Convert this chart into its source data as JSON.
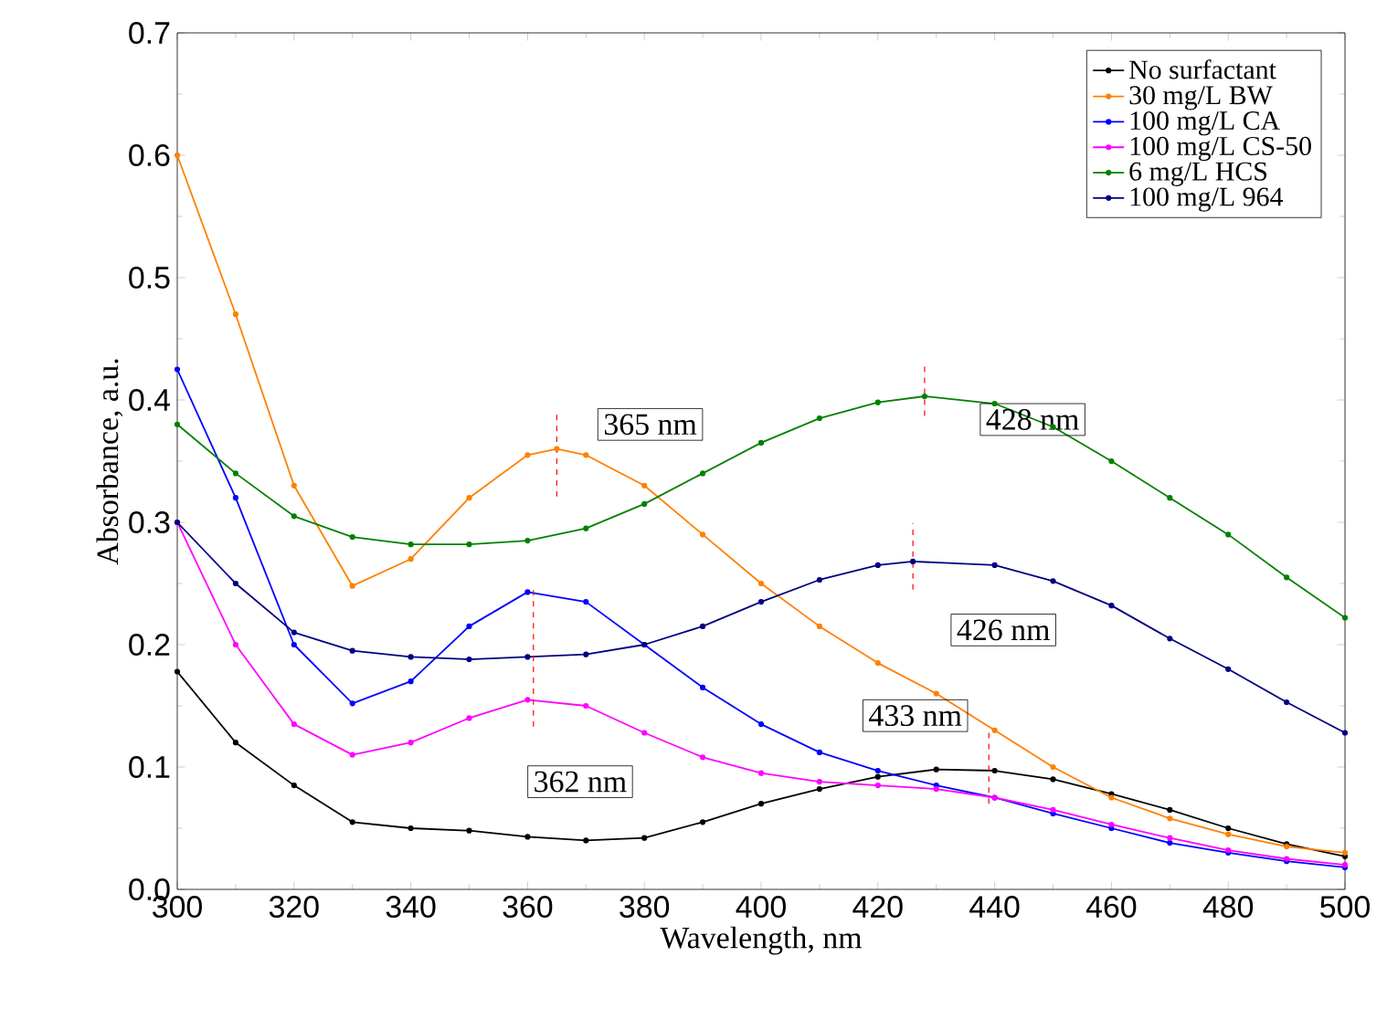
{
  "chart_data": {
    "type": "line",
    "xlabel": "Wavelength, nm",
    "ylabel": "Absorbance, a.u.",
    "xlim": [
      300,
      500
    ],
    "ylim": [
      0,
      0.7
    ],
    "xticks": [
      300,
      320,
      340,
      360,
      380,
      400,
      420,
      440,
      460,
      480,
      500
    ],
    "yticks": [
      {
        "value": 0,
        "label": "0.0"
      },
      0.1,
      0.2,
      0.3,
      0.4,
      0.5,
      0.6,
      0.7
    ],
    "grid": false,
    "legend": "top right",
    "marker": "circle",
    "line_style": "solid",
    "series": [
      {
        "name": "No surfactant",
        "color": "#000000",
        "x": [
          300,
          310,
          320,
          330,
          340,
          350,
          360,
          370,
          380,
          390,
          400,
          410,
          420,
          430,
          440,
          450,
          460,
          470,
          480,
          490,
          500
        ],
        "values": [
          0.178,
          0.12,
          0.085,
          0.055,
          0.05,
          0.048,
          0.043,
          0.04,
          0.042,
          0.055,
          0.07,
          0.082,
          0.092,
          0.098,
          0.097,
          0.09,
          0.078,
          0.065,
          0.05,
          0.037,
          0.027
        ]
      },
      {
        "name": "30 mg/L BW",
        "color": "#ff8000",
        "x": [
          300,
          310,
          320,
          330,
          340,
          350,
          360,
          365,
          370,
          380,
          390,
          400,
          410,
          420,
          430,
          440,
          450,
          460,
          470,
          480,
          490,
          500
        ],
        "values": [
          0.6,
          0.47,
          0.33,
          0.248,
          0.27,
          0.32,
          0.355,
          0.36,
          0.355,
          0.33,
          0.29,
          0.25,
          0.215,
          0.185,
          0.16,
          0.13,
          0.1,
          0.075,
          0.058,
          0.045,
          0.035,
          0.03
        ]
      },
      {
        "name": "100 mg/L CA",
        "color": "#0000ff",
        "x": [
          300,
          310,
          320,
          330,
          340,
          350,
          360,
          370,
          380,
          390,
          400,
          410,
          420,
          430,
          440,
          450,
          460,
          470,
          480,
          490,
          500
        ],
        "values": [
          0.425,
          0.32,
          0.2,
          0.152,
          0.17,
          0.215,
          0.243,
          0.235,
          0.2,
          0.165,
          0.135,
          0.112,
          0.097,
          0.085,
          0.075,
          0.062,
          0.05,
          0.038,
          0.03,
          0.023,
          0.018
        ]
      },
      {
        "name": "100 mg/L CS-50",
        "color": "#ff00ff",
        "x": [
          300,
          310,
          320,
          330,
          340,
          350,
          360,
          370,
          380,
          390,
          400,
          410,
          420,
          430,
          440,
          450,
          460,
          470,
          480,
          490,
          500
        ],
        "values": [
          0.3,
          0.2,
          0.135,
          0.11,
          0.12,
          0.14,
          0.155,
          0.15,
          0.128,
          0.108,
          0.095,
          0.088,
          0.085,
          0.082,
          0.075,
          0.065,
          0.053,
          0.042,
          0.032,
          0.025,
          0.02
        ]
      },
      {
        "name": "6 mg/L HCS",
        "color": "#008000",
        "x": [
          300,
          310,
          320,
          330,
          340,
          350,
          360,
          370,
          380,
          390,
          400,
          410,
          420,
          428,
          440,
          450,
          460,
          470,
          480,
          490,
          500
        ],
        "values": [
          0.38,
          0.34,
          0.305,
          0.288,
          0.282,
          0.282,
          0.285,
          0.295,
          0.315,
          0.34,
          0.365,
          0.385,
          0.398,
          0.403,
          0.397,
          0.378,
          0.35,
          0.32,
          0.29,
          0.255,
          0.222
        ]
      },
      {
        "name": "100 mg/L 964",
        "color": "#000080",
        "x": [
          300,
          310,
          320,
          330,
          340,
          350,
          360,
          370,
          380,
          390,
          400,
          410,
          420,
          426,
          440,
          450,
          460,
          470,
          480,
          490,
          500
        ],
        "values": [
          0.3,
          0.25,
          0.21,
          0.195,
          0.19,
          0.188,
          0.19,
          0.192,
          0.2,
          0.215,
          0.235,
          0.253,
          0.265,
          0.268,
          0.265,
          0.252,
          0.232,
          0.205,
          0.18,
          0.153,
          0.128
        ]
      },
      {
        "type": "line",
        "color": "#ff0000",
        "line_style": "dashed",
        "marker": "none",
        "x": [
          365,
          365
        ],
        "values": [
          0.321,
          0.388
        ]
      },
      {
        "type": "line",
        "color": "#ff0000",
        "line_style": "dashed",
        "marker": "none",
        "x": [
          361,
          361
        ],
        "values": [
          0.133,
          0.246
        ]
      },
      {
        "type": "line",
        "color": "#ff0000",
        "line_style": "dashed",
        "marker": "none",
        "x": [
          428,
          428
        ],
        "values": [
          0.387,
          0.43
        ]
      },
      {
        "type": "line",
        "color": "#ff0000",
        "line_style": "dashed",
        "marker": "none",
        "x": [
          426,
          426
        ],
        "values": [
          0.245,
          0.299
        ]
      },
      {
        "type": "line",
        "color": "#ff0000",
        "line_style": "dashed",
        "marker": "none",
        "x": [
          439,
          439
        ],
        "values": [
          0.07,
          0.13
        ]
      }
    ],
    "annotations": [
      {
        "text": "365 nm",
        "x": 365,
        "y": 0.36
      },
      {
        "text": "362 nm",
        "x": 362,
        "y": 0.155
      },
      {
        "text": "428 nm",
        "x": 428,
        "y": 0.403
      },
      {
        "text": "426 nm",
        "x": 426,
        "y": 0.268
      },
      {
        "text": "433 nm",
        "x": 433,
        "y": 0.098
      }
    ]
  }
}
